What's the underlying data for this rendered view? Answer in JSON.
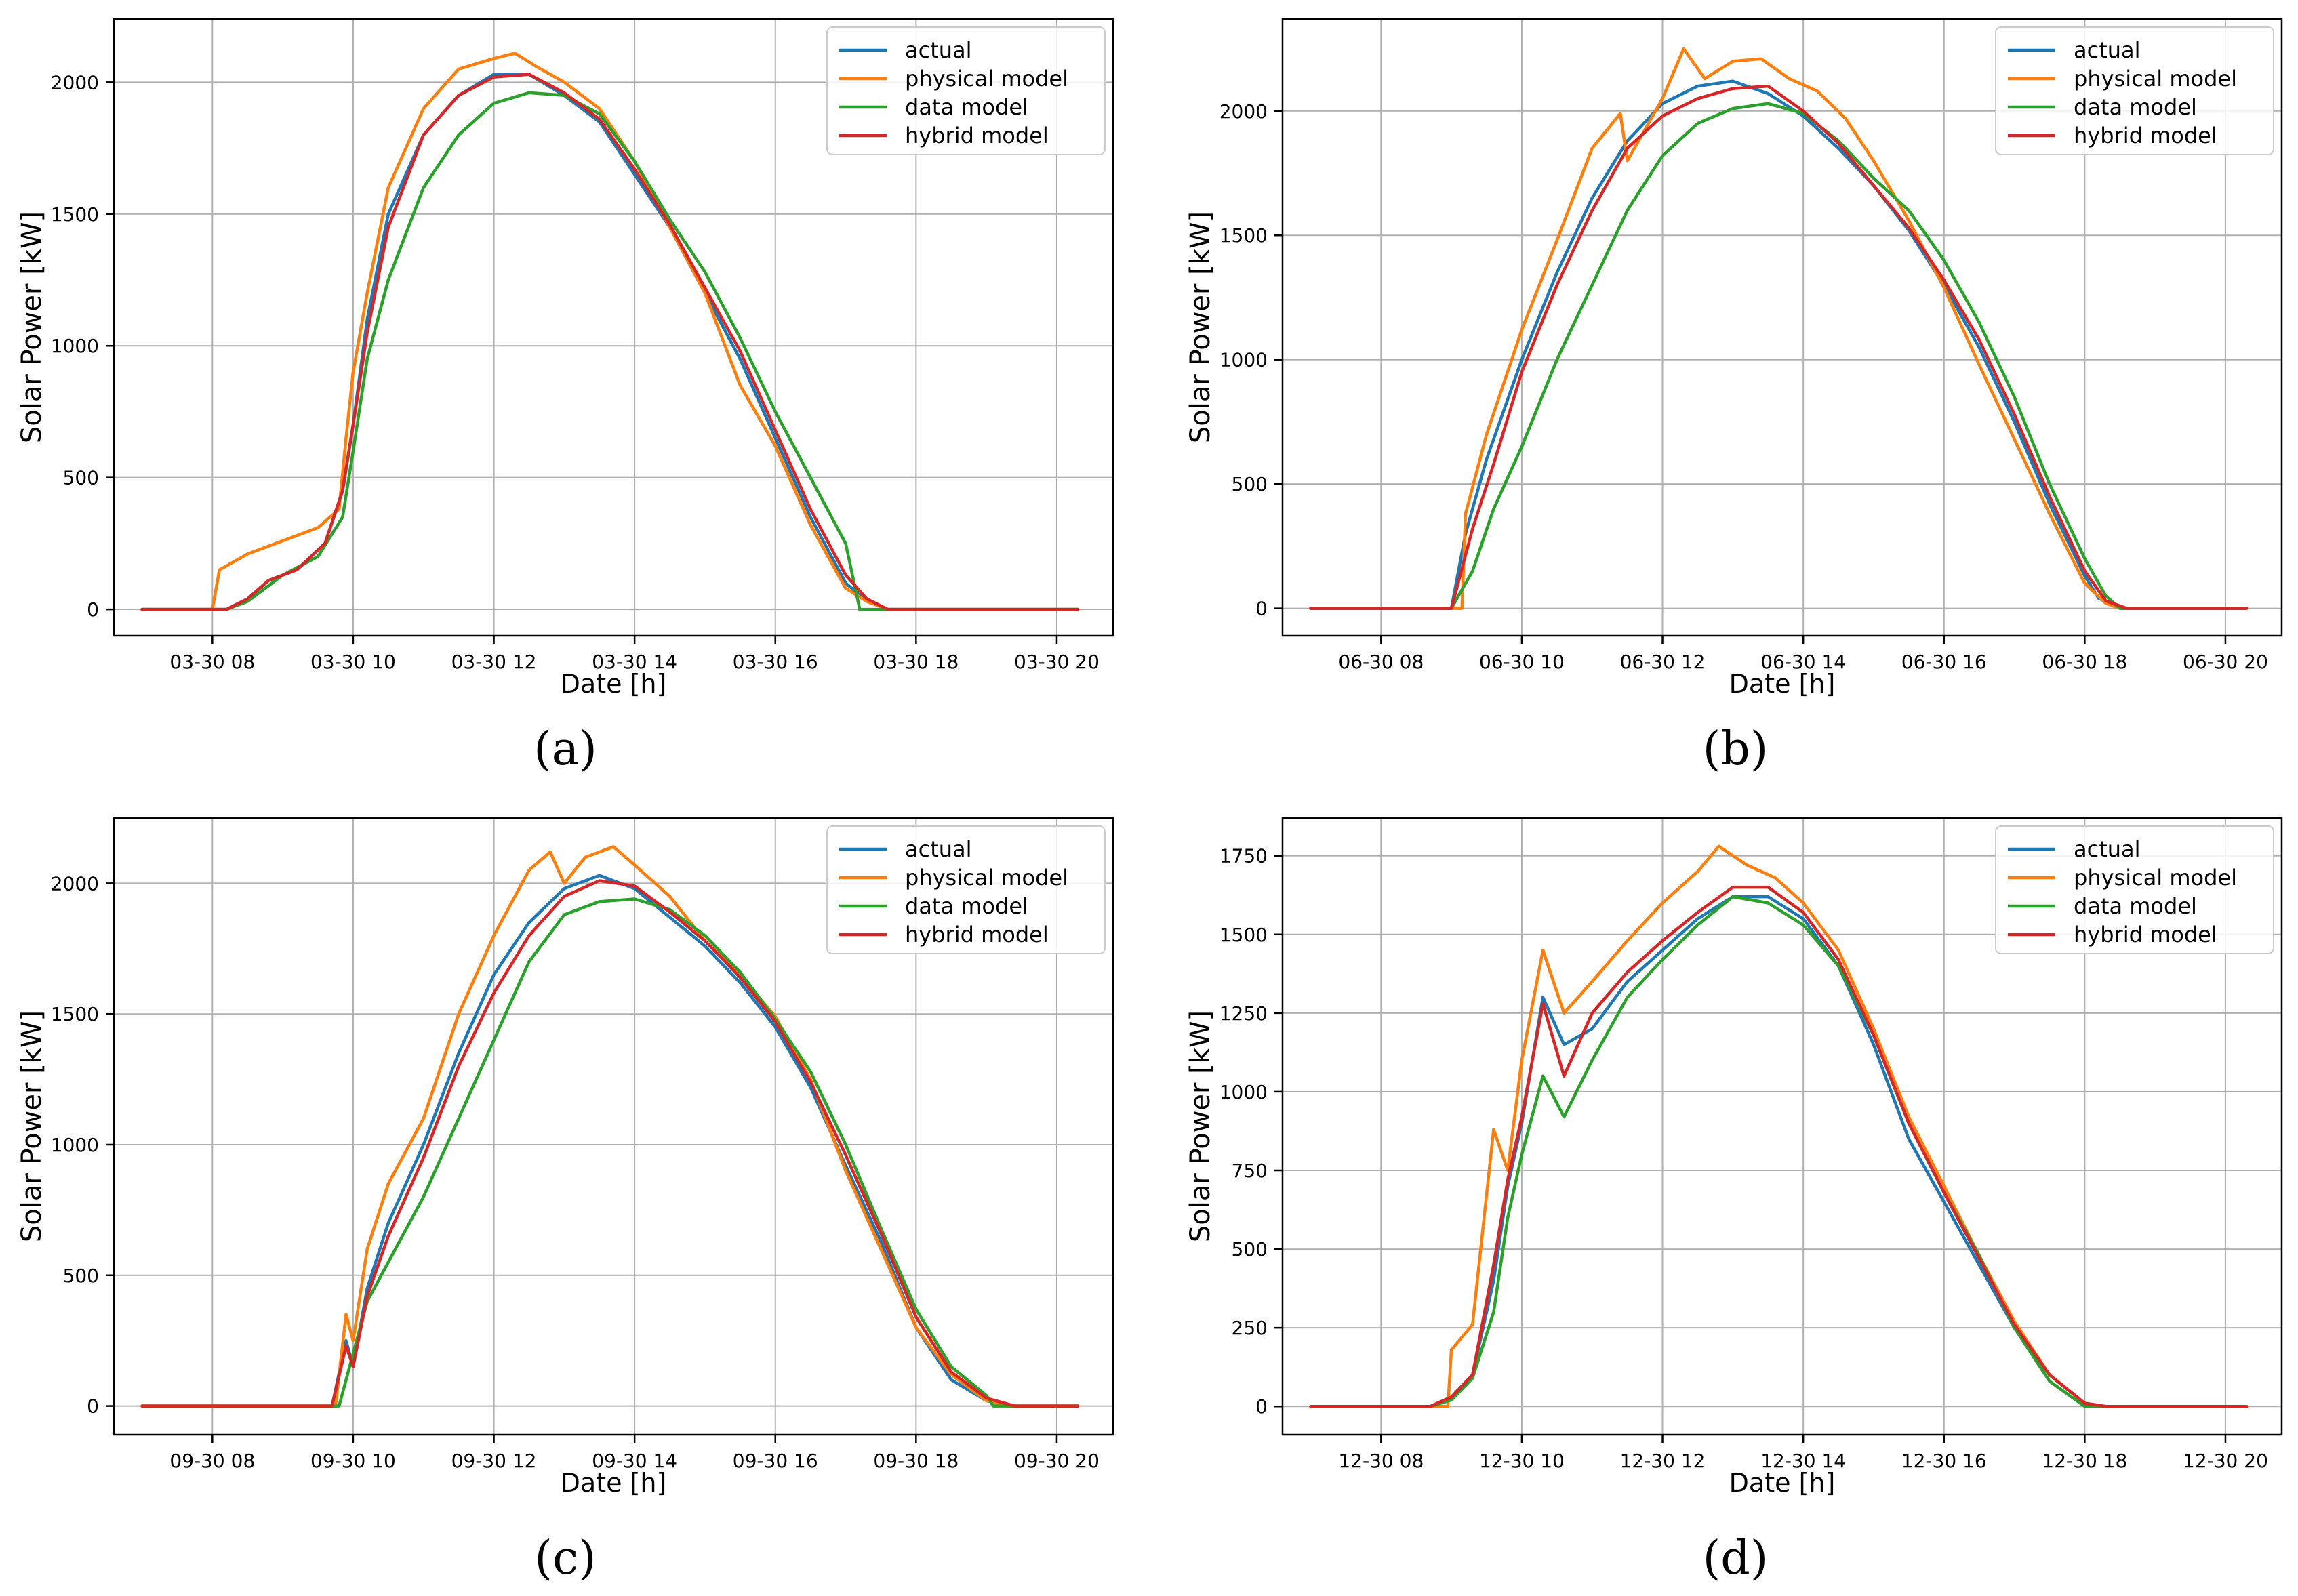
{
  "figure": {
    "background": "#ffffff"
  },
  "colors": {
    "actual": "#1f77b4",
    "physical model": "#ff7f0e",
    "data model": "#2ca02c",
    "hybrid model": "#d62728",
    "grid": "#b0b0b0",
    "axes": "#000000"
  },
  "chart_data": [
    {
      "type": "line",
      "panel_label": "(a)",
      "xlabel": "Date [h]",
      "ylabel": "Solar Power [kW]",
      "x_unit": "hour of day on 03-30",
      "xlim": [
        6.6,
        20.8
      ],
      "ylim": [
        -100,
        2240
      ],
      "xticks": [
        8,
        10,
        12,
        14,
        16,
        18,
        20
      ],
      "xtick_labels": [
        "03-30 08",
        "03-30 10",
        "03-30 12",
        "03-30 14",
        "03-30 16",
        "03-30 18",
        "03-30 20"
      ],
      "yticks": [
        0,
        500,
        1000,
        1500,
        2000
      ],
      "ytick_labels": [
        "0",
        "500",
        "1000",
        "1500",
        "2000"
      ],
      "grid": true,
      "legend_position": "top-right",
      "series": [
        {
          "name": "actual",
          "x": [
            7.0,
            8.2,
            8.5,
            8.8,
            9.2,
            9.6,
            9.85,
            10.0,
            10.2,
            10.5,
            11.0,
            11.5,
            12.0,
            12.5,
            13.0,
            13.5,
            14.0,
            14.5,
            15.0,
            15.5,
            16.0,
            16.5,
            17.0,
            17.3,
            17.6,
            18.0,
            20.3
          ],
          "y": [
            0,
            0,
            40,
            110,
            150,
            250,
            450,
            700,
            1100,
            1500,
            1800,
            1950,
            2030,
            2030,
            1950,
            1850,
            1650,
            1450,
            1200,
            950,
            650,
            350,
            100,
            30,
            0,
            0,
            0
          ]
        },
        {
          "name": "physical model",
          "x": [
            7.0,
            8.0,
            8.1,
            8.5,
            9.0,
            9.5,
            9.8,
            9.9,
            10.0,
            10.2,
            10.5,
            11.0,
            11.5,
            12.0,
            12.3,
            12.6,
            13.0,
            13.5,
            14.0,
            14.5,
            15.0,
            15.5,
            16.0,
            16.5,
            17.0,
            17.3,
            17.6,
            18.0,
            20.3
          ],
          "y": [
            0,
            0,
            150,
            210,
            260,
            310,
            380,
            650,
            900,
            1200,
            1600,
            1900,
            2050,
            2090,
            2110,
            2060,
            2000,
            1900,
            1700,
            1450,
            1200,
            850,
            620,
            320,
            80,
            30,
            0,
            0,
            0
          ]
        },
        {
          "name": "data model",
          "x": [
            7.0,
            8.2,
            8.5,
            9.0,
            9.5,
            9.85,
            10.0,
            10.2,
            10.5,
            11.0,
            11.5,
            12.0,
            12.5,
            13.0,
            13.5,
            14.0,
            14.5,
            15.0,
            15.5,
            16.0,
            16.5,
            17.0,
            17.2,
            18.0,
            20.3
          ],
          "y": [
            0,
            0,
            30,
            130,
            200,
            350,
            600,
            950,
            1250,
            1600,
            1800,
            1920,
            1960,
            1950,
            1880,
            1700,
            1480,
            1280,
            1030,
            750,
            500,
            250,
            0,
            0,
            0
          ]
        },
        {
          "name": "hybrid model",
          "x": [
            7.0,
            8.2,
            8.5,
            8.8,
            9.2,
            9.6,
            9.85,
            10.0,
            10.2,
            10.5,
            11.0,
            11.5,
            12.0,
            12.5,
            13.0,
            13.5,
            14.0,
            14.5,
            15.0,
            15.5,
            16.0,
            16.5,
            17.0,
            17.3,
            17.6,
            18.0,
            20.3
          ],
          "y": [
            0,
            0,
            40,
            110,
            150,
            250,
            450,
            700,
            1050,
            1450,
            1800,
            1950,
            2020,
            2030,
            1960,
            1860,
            1670,
            1460,
            1220,
            980,
            680,
            380,
            130,
            40,
            0,
            0,
            0
          ]
        }
      ]
    },
    {
      "type": "line",
      "panel_label": "(b)",
      "xlabel": "Date [h]",
      "ylabel": "Solar Power [kW]",
      "x_unit": "hour of day on 06-30",
      "xlim": [
        6.6,
        20.8
      ],
      "ylim": [
        -110,
        2370
      ],
      "xticks": [
        8,
        10,
        12,
        14,
        16,
        18,
        20
      ],
      "xtick_labels": [
        "06-30 08",
        "06-30 10",
        "06-30 12",
        "06-30 14",
        "06-30 16",
        "06-30 18",
        "06-30 20"
      ],
      "yticks": [
        0,
        500,
        1000,
        1500,
        2000
      ],
      "ytick_labels": [
        "0",
        "500",
        "1000",
        "1500",
        "2000"
      ],
      "grid": true,
      "legend_position": "top-right",
      "series": [
        {
          "name": "actual",
          "x": [
            7.0,
            9.0,
            9.2,
            9.5,
            10.0,
            10.5,
            11.0,
            11.5,
            12.0,
            12.5,
            13.0,
            13.5,
            14.0,
            14.5,
            15.0,
            15.5,
            16.0,
            16.5,
            17.0,
            17.5,
            18.0,
            18.2,
            18.5,
            20.3
          ],
          "y": [
            0,
            0,
            300,
            600,
            1000,
            1350,
            1650,
            1880,
            2030,
            2100,
            2120,
            2070,
            1980,
            1850,
            1700,
            1520,
            1300,
            1050,
            750,
            420,
            130,
            40,
            0,
            0
          ]
        },
        {
          "name": "physical model",
          "x": [
            7.0,
            9.15,
            9.2,
            9.5,
            10.0,
            10.5,
            11.0,
            11.4,
            11.5,
            12.0,
            12.3,
            12.6,
            13.0,
            13.4,
            13.8,
            14.2,
            14.6,
            15.0,
            15.5,
            16.0,
            16.5,
            17.0,
            17.5,
            18.0,
            18.3,
            18.5,
            20.3
          ],
          "y": [
            0,
            0,
            380,
            700,
            1120,
            1480,
            1850,
            1990,
            1800,
            2050,
            2250,
            2130,
            2200,
            2210,
            2130,
            2080,
            1970,
            1800,
            1560,
            1290,
            980,
            680,
            380,
            100,
            20,
            0,
            0
          ]
        },
        {
          "name": "data model",
          "x": [
            7.0,
            9.0,
            9.3,
            9.6,
            10.0,
            10.5,
            11.0,
            11.5,
            12.0,
            12.5,
            13.0,
            13.5,
            14.0,
            14.5,
            15.0,
            15.5,
            16.0,
            16.5,
            17.0,
            17.5,
            18.0,
            18.3,
            18.5,
            20.3
          ],
          "y": [
            0,
            0,
            150,
            400,
            650,
            1000,
            1300,
            1600,
            1820,
            1950,
            2010,
            2030,
            1990,
            1880,
            1730,
            1600,
            1400,
            1150,
            850,
            500,
            200,
            50,
            0,
            0
          ]
        },
        {
          "name": "hybrid model",
          "x": [
            7.0,
            9.0,
            9.3,
            9.6,
            10.0,
            10.5,
            11.0,
            11.5,
            12.0,
            12.5,
            13.0,
            13.5,
            14.0,
            14.5,
            15.0,
            15.5,
            16.0,
            16.5,
            17.0,
            17.5,
            18.0,
            18.3,
            18.6,
            20.3
          ],
          "y": [
            0,
            0,
            320,
            580,
            950,
            1300,
            1600,
            1850,
            1980,
            2050,
            2090,
            2100,
            2000,
            1870,
            1700,
            1530,
            1320,
            1080,
            780,
            450,
            150,
            30,
            0,
            0
          ]
        }
      ]
    },
    {
      "type": "line",
      "panel_label": "(c)",
      "xlabel": "Date [h]",
      "ylabel": "Solar Power [kW]",
      "x_unit": "hour of day on 09-30",
      "xlim": [
        6.6,
        20.8
      ],
      "ylim": [
        -110,
        2250
      ],
      "xticks": [
        8,
        10,
        12,
        14,
        16,
        18,
        20
      ],
      "xtick_labels": [
        "09-30 08",
        "09-30 10",
        "09-30 12",
        "09-30 14",
        "09-30 16",
        "09-30 18",
        "09-30 20"
      ],
      "yticks": [
        0,
        500,
        1000,
        1500,
        2000
      ],
      "ytick_labels": [
        "0",
        "500",
        "1000",
        "1500",
        "2000"
      ],
      "grid": true,
      "legend_position": "top-right",
      "series": [
        {
          "name": "actual",
          "x": [
            7.0,
            9.7,
            9.9,
            10.0,
            10.2,
            10.5,
            11.0,
            11.5,
            12.0,
            12.5,
            13.0,
            13.5,
            14.0,
            14.5,
            15.0,
            15.5,
            16.0,
            16.5,
            17.0,
            17.5,
            18.0,
            18.5,
            19.0,
            19.4,
            20.3
          ],
          "y": [
            0,
            0,
            250,
            150,
            450,
            700,
            1000,
            1350,
            1650,
            1850,
            1980,
            2030,
            1980,
            1870,
            1760,
            1620,
            1450,
            1220,
            920,
            630,
            300,
            100,
            20,
            0,
            0
          ]
        },
        {
          "name": "physical model",
          "x": [
            7.0,
            9.75,
            9.9,
            10.0,
            10.2,
            10.5,
            11.0,
            11.5,
            12.0,
            12.5,
            12.8,
            13.0,
            13.3,
            13.7,
            14.0,
            14.5,
            15.0,
            15.5,
            16.0,
            16.5,
            17.0,
            17.5,
            18.0,
            18.5,
            19.0,
            19.3,
            20.3
          ],
          "y": [
            0,
            0,
            350,
            250,
            600,
            850,
            1100,
            1500,
            1800,
            2050,
            2120,
            2000,
            2100,
            2140,
            2070,
            1950,
            1780,
            1650,
            1490,
            1250,
            900,
            600,
            300,
            120,
            20,
            0,
            0
          ]
        },
        {
          "name": "data model",
          "x": [
            7.0,
            9.8,
            10.0,
            10.2,
            10.5,
            11.0,
            11.5,
            12.0,
            12.5,
            13.0,
            13.5,
            14.0,
            14.5,
            15.0,
            15.5,
            16.0,
            16.5,
            17.0,
            17.5,
            18.0,
            18.5,
            19.0,
            19.1,
            20.3
          ],
          "y": [
            0,
            0,
            200,
            400,
            550,
            800,
            1100,
            1400,
            1700,
            1880,
            1930,
            1940,
            1900,
            1800,
            1660,
            1480,
            1280,
            1000,
            680,
            370,
            150,
            40,
            0,
            0
          ]
        },
        {
          "name": "hybrid model",
          "x": [
            7.0,
            9.7,
            9.9,
            10.0,
            10.2,
            10.5,
            11.0,
            11.5,
            12.0,
            12.5,
            13.0,
            13.5,
            14.0,
            14.5,
            15.0,
            15.5,
            16.0,
            16.5,
            17.0,
            17.5,
            18.0,
            18.5,
            19.0,
            19.4,
            20.3
          ],
          "y": [
            0,
            0,
            230,
            150,
            420,
            650,
            950,
            1300,
            1580,
            1800,
            1950,
            2010,
            1990,
            1890,
            1780,
            1640,
            1470,
            1240,
            960,
            660,
            340,
            130,
            30,
            0,
            0
          ]
        }
      ]
    },
    {
      "type": "line",
      "panel_label": "(d)",
      "xlabel": "Date [h]",
      "ylabel": "Solar Power [kW]",
      "x_unit": "hour of day on 12-30",
      "xlim": [
        6.6,
        20.8
      ],
      "ylim": [
        -90,
        1870
      ],
      "xticks": [
        8,
        10,
        12,
        14,
        16,
        18,
        20
      ],
      "xtick_labels": [
        "12-30 08",
        "12-30 10",
        "12-30 12",
        "12-30 14",
        "12-30 16",
        "12-30 18",
        "12-30 20"
      ],
      "yticks": [
        0,
        250,
        500,
        750,
        1000,
        1250,
        1500,
        1750
      ],
      "ytick_labels": [
        "0",
        "250",
        "500",
        "750",
        "1000",
        "1250",
        "1500",
        "1750"
      ],
      "grid": true,
      "legend_position": "top-right",
      "series": [
        {
          "name": "actual",
          "x": [
            7.0,
            8.7,
            9.0,
            9.3,
            9.6,
            9.8,
            10.0,
            10.3,
            10.6,
            11.0,
            11.5,
            12.0,
            12.5,
            13.0,
            13.5,
            14.0,
            14.5,
            15.0,
            15.5,
            16.0,
            16.5,
            17.0,
            17.5,
            18.0,
            18.3,
            20.3
          ],
          "y": [
            0,
            0,
            30,
            100,
            400,
            700,
            900,
            1300,
            1150,
            1200,
            1350,
            1450,
            1550,
            1620,
            1620,
            1550,
            1400,
            1150,
            850,
            650,
            450,
            250,
            100,
            10,
            0,
            0
          ]
        },
        {
          "name": "physical model",
          "x": [
            7.0,
            8.95,
            9.0,
            9.3,
            9.6,
            9.8,
            10.0,
            10.3,
            10.6,
            11.0,
            11.5,
            12.0,
            12.5,
            12.8,
            13.2,
            13.6,
            14.0,
            14.5,
            15.0,
            15.5,
            16.0,
            16.5,
            17.0,
            17.5,
            18.0,
            18.3,
            20.3
          ],
          "y": [
            0,
            0,
            180,
            260,
            880,
            750,
            1100,
            1450,
            1250,
            1350,
            1480,
            1600,
            1700,
            1780,
            1720,
            1680,
            1600,
            1450,
            1200,
            920,
            700,
            480,
            270,
            100,
            10,
            0,
            0
          ]
        },
        {
          "name": "data model",
          "x": [
            7.0,
            8.7,
            9.0,
            9.3,
            9.6,
            9.8,
            10.0,
            10.3,
            10.6,
            11.0,
            11.5,
            12.0,
            12.5,
            13.0,
            13.5,
            14.0,
            14.5,
            15.0,
            15.5,
            16.0,
            16.5,
            17.0,
            17.5,
            18.0,
            18.2,
            20.3
          ],
          "y": [
            0,
            0,
            20,
            90,
            300,
            600,
            800,
            1050,
            920,
            1100,
            1300,
            1420,
            1530,
            1620,
            1600,
            1530,
            1400,
            1180,
            900,
            680,
            480,
            250,
            80,
            0,
            0,
            0
          ]
        },
        {
          "name": "hybrid model",
          "x": [
            7.0,
            8.7,
            9.0,
            9.3,
            9.6,
            9.8,
            10.0,
            10.3,
            10.6,
            11.0,
            11.5,
            12.0,
            12.5,
            13.0,
            13.5,
            14.0,
            14.5,
            15.0,
            15.5,
            16.0,
            16.5,
            17.0,
            17.5,
            18.0,
            18.3,
            20.3
          ],
          "y": [
            0,
            0,
            30,
            100,
            450,
            720,
            920,
            1280,
            1050,
            1250,
            1380,
            1480,
            1570,
            1650,
            1650,
            1570,
            1420,
            1180,
            900,
            680,
            470,
            260,
            100,
            10,
            0,
            0
          ]
        }
      ]
    }
  ]
}
